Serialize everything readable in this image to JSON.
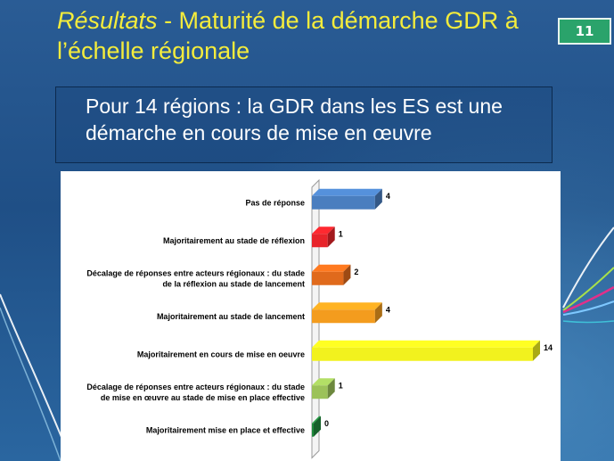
{
  "slide": {
    "title_italic": "Résultats",
    "title_rest": " - Maturité de la démarche GDR à l’échelle régionale",
    "slide_number": "11",
    "subtitle": "Pour 14 régions  : la GDR dans les ES est une démarche en cours de mise en œuvre"
  },
  "chart_data": {
    "type": "bar",
    "orientation": "horizontal",
    "categories": [
      "Pas de réponse",
      "Majoritairement au stade de réflexion",
      "Décalage de réponses entre acteurs régionaux : du stade de la réflexion au stade de lancement",
      "Majoritairement au stade de lancement",
      "Majoritairement en cours de mise en oeuvre",
      "Décalage de réponses entre acteurs régionaux : du stade de mise en œuvre au stade de mise en place effective",
      "Majoritairement mise en place et effective"
    ],
    "category_lines": [
      [
        "Pas de réponse"
      ],
      [
        "Majoritairement au stade de réflexion"
      ],
      [
        "Décalage de réponses entre acteurs régionaux : du stade",
        "de la réflexion au stade de lancement"
      ],
      [
        "Majoritairement au stade de lancement"
      ],
      [
        "Majoritairement en cours de mise en oeuvre"
      ],
      [
        "Décalage de réponses entre acteurs régionaux : du stade",
        "de mise en œuvre au stade de mise en place effective"
      ],
      [
        "Majoritairement mise en place et effective"
      ]
    ],
    "values": [
      4,
      1,
      2,
      4,
      14,
      1,
      0
    ],
    "colors": [
      "#4a7ebf",
      "#e8242a",
      "#e06a1c",
      "#f39c1e",
      "#f2f21e",
      "#9cc259",
      "#1f8a3c"
    ],
    "xlim": [
      0,
      14
    ],
    "grid": false,
    "legend": "none"
  }
}
